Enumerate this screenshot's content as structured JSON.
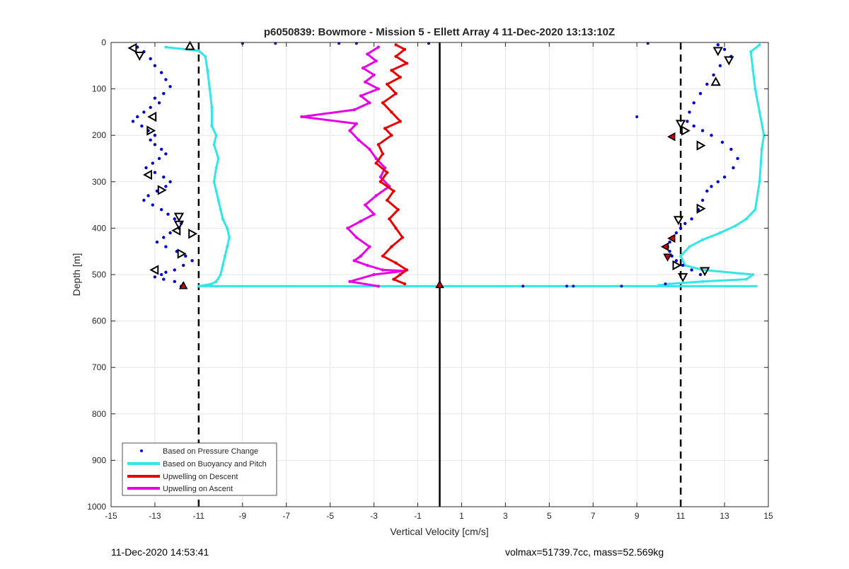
{
  "chart_data": {
    "type": "scatter",
    "title": "p6050839: Bowmore - Mission 5 - Ellett Array 4 11-Dec-2020 13:13:10Z",
    "xlabel": "Vertical Velocity [cm/s]",
    "ylabel": "Depth [m]",
    "xlim": [
      -15,
      15
    ],
    "ylim": [
      0,
      1000
    ],
    "y_reversed": true,
    "grid": true,
    "legend_placement": "bottom-left",
    "xticks": [
      -15,
      -13,
      -11,
      -9,
      -7,
      -5,
      -3,
      -1,
      1,
      3,
      5,
      7,
      9,
      11,
      13,
      15
    ],
    "yticks": [
      0,
      100,
      200,
      300,
      400,
      500,
      600,
      700,
      800,
      900,
      1000
    ],
    "reference_lines": [
      {
        "style": "dashed",
        "x": -11,
        "color": "#000000"
      },
      {
        "style": "dashed",
        "x": 11,
        "color": "#000000"
      },
      {
        "style": "solid",
        "x": 0,
        "y_range": [
          0,
          1000
        ],
        "color": "#000000"
      }
    ],
    "series": [
      {
        "name": "Based on Pressure Change",
        "kind": "points",
        "color": "#0000cc",
        "down_x": [
          -13.8,
          -13.5,
          -13.2,
          -13.0,
          -12.7,
          -12.5,
          -12.3,
          -12.6,
          -13.0,
          -12.8,
          -13.2,
          -13.5,
          -13.8,
          -14.0,
          -13.6,
          -13.3,
          -13.0,
          -13.2,
          -13.0,
          -12.7,
          -12.5,
          -12.8,
          -13.1,
          -13.4,
          -13.0,
          -12.6,
          -12.3,
          -12.5,
          -12.9,
          -13.3,
          -13.5,
          -13.1,
          -12.7,
          -12.4,
          -12.1,
          -11.8,
          -11.9,
          -12.3,
          -12.6,
          -12.9,
          -12.5,
          -12.0,
          -11.6,
          -11.3,
          -11.7,
          -12.1,
          -12.5,
          -12.7,
          -13.0,
          -12.6,
          -12.1,
          -11.7,
          -11.8
        ],
        "down_y": [
          10,
          20,
          35,
          50,
          65,
          80,
          95,
          110,
          120,
          130,
          140,
          150,
          160,
          170,
          180,
          190,
          200,
          210,
          220,
          230,
          240,
          250,
          260,
          270,
          280,
          290,
          300,
          310,
          320,
          330,
          340,
          350,
          360,
          370,
          380,
          390,
          400,
          410,
          420,
          430,
          440,
          450,
          460,
          470,
          480,
          490,
          495,
          500,
          505,
          510,
          515,
          520,
          525
        ],
        "up_x": [
          12.7,
          13.0,
          13.3,
          12.8,
          12.5,
          12.2,
          11.9,
          11.6,
          11.4,
          11.3,
          11.6,
          12.0,
          12.4,
          12.9,
          13.3,
          13.6,
          13.4,
          13.0,
          12.7,
          12.4,
          12.2,
          12.0,
          11.8,
          11.5,
          11.2,
          11.0,
          10.8,
          10.6,
          10.5,
          10.4,
          10.5,
          10.6,
          10.8,
          11.1,
          11.5,
          11.9
        ],
        "up_y": [
          5,
          15,
          30,
          50,
          70,
          90,
          110,
          130,
          150,
          170,
          180,
          190,
          200,
          215,
          230,
          250,
          270,
          290,
          300,
          310,
          320,
          340,
          360,
          380,
          390,
          400,
          410,
          420,
          430,
          440,
          450,
          460,
          470,
          480,
          490,
          500
        ],
        "outliers_x": [
          -9.0,
          -7.5,
          -4.6,
          -3.8,
          -0.5,
          3.8,
          5.8,
          6.1,
          9.5,
          9.0,
          8.3,
          10.3
        ],
        "outliers_y": [
          2,
          2,
          2,
          2,
          2,
          525,
          525,
          525,
          2,
          160,
          525,
          520
        ]
      },
      {
        "name": "Based on Buoyancy and Pitch",
        "kind": "line",
        "color": "#33e6e6",
        "down_x": [
          -12.5,
          -11.0,
          -10.7,
          -10.6,
          -10.5,
          -10.4,
          -10.4,
          -10.2,
          -10.3,
          -10.1,
          -10.2,
          -10.3,
          -10.2,
          -10.1,
          -10.0,
          -9.9,
          -9.7,
          -9.6,
          -9.7,
          -9.8,
          -9.9,
          -10.0,
          -10.2,
          -10.4,
          -11.0
        ],
        "down_y": [
          10,
          18,
          30,
          60,
          100,
          140,
          180,
          200,
          220,
          250,
          270,
          300,
          320,
          340,
          360,
          380,
          400,
          420,
          440,
          460,
          480,
          500,
          515,
          520,
          525
        ],
        "up_x": [
          14.6,
          14.2,
          14.3,
          14.4,
          14.6,
          14.8,
          14.7,
          14.6,
          14.4,
          14.0,
          13.5,
          12.8,
          12.0,
          11.4,
          11.0,
          11.2,
          12.0,
          14.3,
          14.0,
          12.0,
          10.5,
          10.0
        ],
        "up_y": [
          5,
          20,
          60,
          100,
          150,
          200,
          230,
          300,
          360,
          380,
          395,
          410,
          425,
          440,
          460,
          480,
          490,
          500,
          510,
          515,
          520,
          523
        ],
        "bottom_x": [
          -11.0,
          14.5
        ],
        "bottom_y": [
          525,
          525
        ]
      },
      {
        "name": "Upwelling on Descent",
        "kind": "line",
        "color": "#e60000",
        "x": [
          -2.0,
          -1.6,
          -2.0,
          -1.5,
          -2.2,
          -1.8,
          -2.4,
          -2.0,
          -2.6,
          -2.2,
          -1.8,
          -2.5,
          -2.2,
          -2.8,
          -2.6,
          -2.9,
          -2.4,
          -2.7,
          -2.1,
          -2.4,
          -1.9,
          -2.3,
          -2.0,
          -1.7,
          -2.2,
          -2.6,
          -2.0,
          -1.5,
          -1.8,
          -2.1,
          -1.6
        ],
        "y": [
          5,
          15,
          30,
          45,
          60,
          75,
          90,
          110,
          130,
          150,
          170,
          185,
          200,
          220,
          240,
          260,
          280,
          300,
          320,
          340,
          360,
          380,
          400,
          420,
          440,
          460,
          475,
          490,
          500,
          510,
          520
        ]
      },
      {
        "name": "Upwelling on Ascent",
        "kind": "line",
        "color": "#e600e6",
        "x": [
          -2.8,
          -3.3,
          -2.9,
          -3.5,
          -3.0,
          -3.4,
          -2.8,
          -3.6,
          -3.2,
          -3.9,
          -6.3,
          -3.8,
          -4.1,
          -3.7,
          -3.2,
          -2.9,
          -2.5,
          -2.7,
          -2.3,
          -2.9,
          -3.4,
          -3.0,
          -3.6,
          -4.2,
          -3.8,
          -3.2,
          -3.6,
          -3.9,
          -3.3,
          -2.6,
          -1.6,
          -3.0,
          -4.1,
          -2.8
        ],
        "y": [
          10,
          25,
          40,
          55,
          70,
          85,
          100,
          115,
          130,
          145,
          160,
          175,
          190,
          210,
          230,
          250,
          270,
          290,
          310,
          330,
          350,
          370,
          385,
          400,
          420,
          440,
          460,
          470,
          480,
          490,
          492,
          500,
          515,
          525
        ]
      }
    ],
    "markers": {
      "hollow_triangles": [
        {
          "x": -14.0,
          "y": 12,
          "dir": "left"
        },
        {
          "x": -13.7,
          "y": 28,
          "dir": "down"
        },
        {
          "x": -11.4,
          "y": 8,
          "dir": "up"
        },
        {
          "x": -13.1,
          "y": 160,
          "dir": "left"
        },
        {
          "x": -13.2,
          "y": 190,
          "dir": "right"
        },
        {
          "x": -13.3,
          "y": 285,
          "dir": "left"
        },
        {
          "x": -12.7,
          "y": 318,
          "dir": "right"
        },
        {
          "x": -11.9,
          "y": 375,
          "dir": "down"
        },
        {
          "x": -11.9,
          "y": 392,
          "dir": "down"
        },
        {
          "x": -12.0,
          "y": 405,
          "dir": "left"
        },
        {
          "x": -11.3,
          "y": 412,
          "dir": "right"
        },
        {
          "x": -11.8,
          "y": 455,
          "dir": "right"
        },
        {
          "x": -13.0,
          "y": 490,
          "dir": "left"
        },
        {
          "x": 12.7,
          "y": 18,
          "dir": "down"
        },
        {
          "x": 13.2,
          "y": 38,
          "dir": "down"
        },
        {
          "x": 12.6,
          "y": 85,
          "dir": "up"
        },
        {
          "x": 11.0,
          "y": 175,
          "dir": "down"
        },
        {
          "x": 11.2,
          "y": 190,
          "dir": "right"
        },
        {
          "x": 11.9,
          "y": 222,
          "dir": "right"
        },
        {
          "x": 11.9,
          "y": 358,
          "dir": "right"
        },
        {
          "x": 10.9,
          "y": 382,
          "dir": "down"
        },
        {
          "x": 10.8,
          "y": 480,
          "dir": "right"
        },
        {
          "x": 12.1,
          "y": 492,
          "dir": "down"
        },
        {
          "x": 11.1,
          "y": 505,
          "dir": "down"
        }
      ],
      "filled_triangles": [
        {
          "x": -11.7,
          "y": 524,
          "dir": "up"
        },
        {
          "x": 0.0,
          "y": 522,
          "dir": "up"
        },
        {
          "x": 10.6,
          "y": 203,
          "dir": "left"
        },
        {
          "x": 10.6,
          "y": 422,
          "dir": "left"
        },
        {
          "x": 10.3,
          "y": 440,
          "dir": "left"
        },
        {
          "x": 10.4,
          "y": 462,
          "dir": "down"
        }
      ]
    }
  },
  "footer": {
    "left": "11-Dec-2020 14:53:41",
    "right": "volmax=51739.7cc, mass=52.569kg"
  },
  "colors": {
    "axes": "#262626",
    "grid": "#e6e6e6",
    "marker_fill": "#cc0000"
  }
}
